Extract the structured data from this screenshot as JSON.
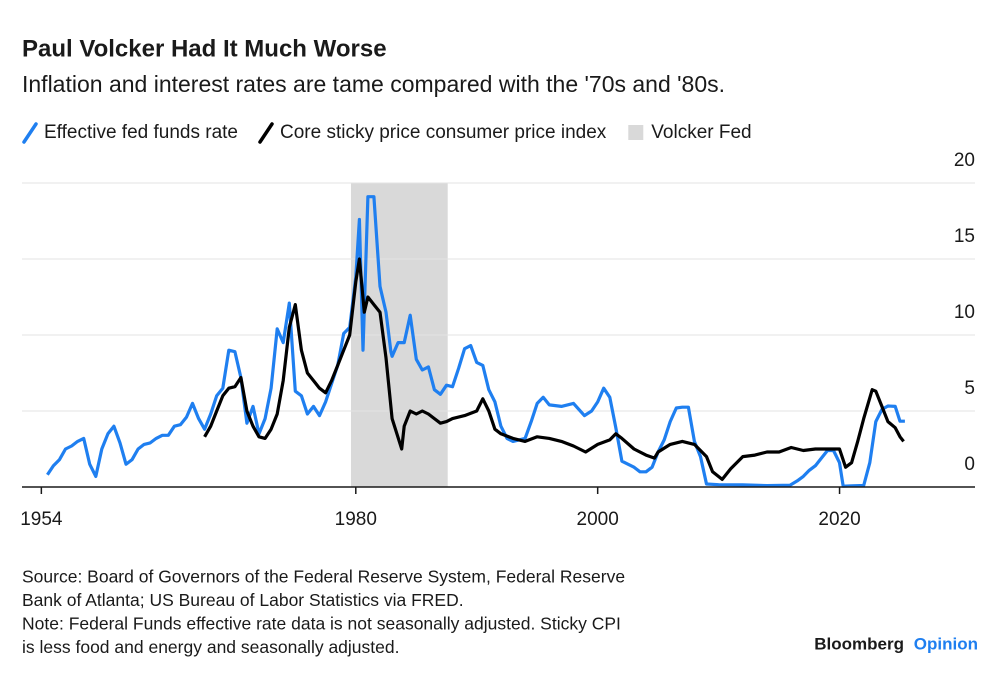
{
  "chart_data": {
    "type": "line",
    "title": "Paul Volcker Had It Much Worse",
    "subtitle": "Inflation and interest rates are tame compared with the '70s and '80s.",
    "series": [
      {
        "name": "Effective fed funds rate",
        "color": "#1f7ff0",
        "x": [
          1954.5,
          1955,
          1955.5,
          1956,
          1956.5,
          1957,
          1957.5,
          1958,
          1958.5,
          1959,
          1959.5,
          1960,
          1960.5,
          1961,
          1961.5,
          1962,
          1962.5,
          1963,
          1963.5,
          1964,
          1964.5,
          1965,
          1965.5,
          1966,
          1966.5,
          1967,
          1967.5,
          1968,
          1968.5,
          1969,
          1969.5,
          1970,
          1970.5,
          1971,
          1971.5,
          1972,
          1972.5,
          1973,
          1973.5,
          1974,
          1974.5,
          1975,
          1975.5,
          1976,
          1976.5,
          1977,
          1977.5,
          1978,
          1978.5,
          1979,
          1979.5,
          1980,
          1980.3,
          1980.6,
          1981,
          1981.5,
          1982,
          1982.5,
          1982.9,
          1983,
          1983.5,
          1984,
          1984.5,
          1985,
          1985.5,
          1986,
          1986.5,
          1987,
          1987.5,
          1988,
          1988.5,
          1989,
          1989.5,
          1990,
          1990.5,
          1991,
          1991.5,
          1992,
          1992.5,
          1993,
          1994,
          1994.5,
          1995,
          1995.5,
          1996,
          1997,
          1998,
          1998.9,
          1999.5,
          2000,
          2000.5,
          2001,
          2001.5,
          2002,
          2003,
          2003.5,
          2004,
          2004.5,
          2005,
          2005.5,
          2006,
          2006.5,
          2007,
          2007.5,
          2008,
          2008.5,
          2009,
          2010,
          2012,
          2014,
          2015.9,
          2016.5,
          2017,
          2017.5,
          2018,
          2018.5,
          2019,
          2019.5,
          2020,
          2020.3,
          2021,
          2022,
          2022.5,
          2023,
          2023.5,
          2024,
          2024.6,
          2025,
          2025.4
        ],
        "values": [
          0.8,
          1.4,
          1.8,
          2.5,
          2.7,
          3.0,
          3.2,
          1.5,
          0.7,
          2.5,
          3.5,
          4.0,
          2.9,
          1.5,
          1.8,
          2.5,
          2.8,
          2.9,
          3.2,
          3.4,
          3.4,
          4.0,
          4.1,
          4.6,
          5.5,
          4.5,
          3.8,
          4.8,
          6.0,
          6.5,
          9.0,
          8.9,
          7.2,
          4.2,
          5.3,
          3.5,
          4.5,
          6.5,
          10.4,
          9.5,
          12.1,
          6.3,
          6.0,
          4.8,
          5.3,
          4.7,
          5.6,
          6.8,
          8.0,
          10.1,
          10.5,
          13.8,
          17.6,
          9.0,
          19.1,
          19.1,
          13.2,
          11.5,
          8.9,
          8.6,
          9.5,
          9.5,
          11.3,
          8.4,
          7.7,
          7.9,
          6.4,
          6.1,
          6.7,
          6.6,
          7.8,
          9.1,
          9.3,
          8.2,
          8.0,
          6.4,
          5.6,
          4.0,
          3.2,
          3.0,
          3.2,
          4.3,
          5.5,
          5.9,
          5.4,
          5.3,
          5.5,
          4.7,
          5.0,
          5.6,
          6.5,
          5.9,
          3.9,
          1.7,
          1.3,
          1.0,
          1.0,
          1.3,
          2.3,
          3.1,
          4.3,
          5.2,
          5.25,
          5.25,
          3.0,
          2.0,
          0.2,
          0.15,
          0.14,
          0.09,
          0.12,
          0.4,
          0.7,
          1.1,
          1.4,
          1.9,
          2.4,
          2.4,
          1.6,
          0.05,
          0.08,
          0.1,
          1.6,
          4.3,
          5.1,
          5.33,
          5.3,
          4.33,
          4.33
        ]
      },
      {
        "name": "Core sticky price consumer price index",
        "color": "#000000",
        "x": [
          1967.5,
          1968,
          1968.5,
          1969,
          1969.5,
          1970,
          1970.5,
          1971,
          1971.5,
          1972,
          1972.5,
          1973,
          1973.5,
          1974,
          1974.5,
          1975,
          1975.5,
          1976,
          1976.5,
          1977,
          1977.5,
          1978,
          1978.5,
          1979,
          1979.5,
          1980,
          1980.3,
          1980.7,
          1981,
          1981.5,
          1982,
          1982.5,
          1983,
          1983.4,
          1983.8,
          1984,
          1984.5,
          1985,
          1985.5,
          1986,
          1986.5,
          1987,
          1987.5,
          1988,
          1989,
          1990,
          1990.5,
          1991,
          1991.5,
          1992,
          1993,
          1994,
          1995,
          1996,
          1997,
          1998,
          1999,
          2000,
          2001,
          2001.5,
          2002,
          2003,
          2004,
          2004.7,
          2005,
          2006,
          2007,
          2008,
          2009,
          2009.5,
          2010.3,
          2011,
          2012,
          2013,
          2014,
          2015,
          2016,
          2017,
          2018,
          2019,
          2020,
          2020.5,
          2021,
          2021.5,
          2022,
          2022.7,
          2023,
          2023.5,
          2024,
          2024.6,
          2025,
          2025.3
        ],
        "values": [
          3.3,
          4.0,
          5.0,
          6.0,
          6.5,
          6.6,
          7.2,
          5.0,
          4.0,
          3.3,
          3.2,
          3.8,
          4.8,
          7.0,
          10.5,
          12.0,
          9.0,
          7.5,
          7.0,
          6.5,
          6.2,
          7.0,
          8.0,
          9.0,
          10.0,
          13.5,
          15.0,
          11.5,
          12.5,
          12.0,
          11.5,
          8.5,
          4.5,
          3.5,
          2.5,
          4.0,
          5.0,
          4.8,
          5.0,
          4.8,
          4.5,
          4.2,
          4.3,
          4.5,
          4.7,
          5.0,
          5.8,
          5.0,
          3.8,
          3.5,
          3.2,
          3.0,
          3.3,
          3.2,
          3.0,
          2.7,
          2.3,
          2.8,
          3.1,
          3.5,
          3.2,
          2.5,
          2.1,
          1.9,
          2.3,
          2.8,
          3.0,
          2.8,
          2.0,
          1.0,
          0.5,
          1.2,
          2.0,
          2.1,
          2.3,
          2.3,
          2.6,
          2.4,
          2.5,
          2.5,
          2.5,
          1.3,
          1.6,
          3.0,
          4.5,
          6.4,
          6.3,
          5.3,
          4.3,
          3.9,
          3.3,
          3.0
        ]
      }
    ],
    "shading": {
      "name": "Volcker Fed",
      "color": "#d9d9d9",
      "x": [
        1979.6,
        1987.6
      ]
    },
    "xlim": [
      1952.4,
      2031.2
    ],
    "xticks": [
      1954,
      1980,
      2000,
      2020
    ],
    "ylim": [
      0,
      20
    ],
    "yticks": [
      0,
      5,
      10,
      15,
      20
    ],
    "grid": true,
    "source": [
      "Source: Board of Governors of the Federal Reserve System, Federal Reserve",
      "Bank of Atlanta; US Bureau of Labor Statistics via FRED.",
      "Note: Federal Funds effective rate data is not seasonally adjusted. Sticky CPI",
      "is less food and energy and seasonally adjusted."
    ],
    "brand": [
      "Bloomberg",
      "Opinion"
    ]
  }
}
